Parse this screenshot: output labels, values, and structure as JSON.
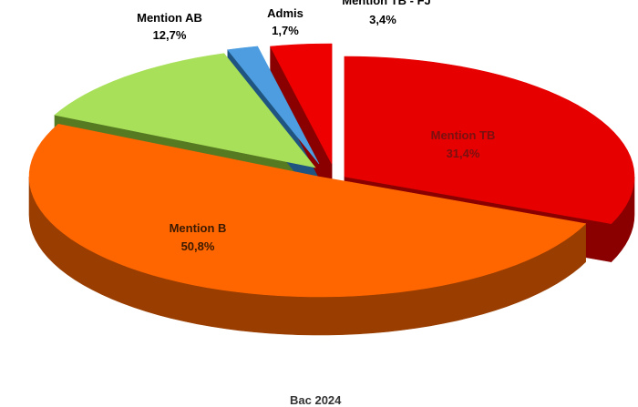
{
  "chart_data": {
    "type": "pie",
    "subtype": "3d-exploded",
    "slices": [
      {
        "label": "Mention TB",
        "value": 31.4,
        "value_text": "31,4%",
        "color": "#e60000",
        "side_color": "#8a0000"
      },
      {
        "label": "Mention B",
        "value": 50.8,
        "value_text": "50,8%",
        "color": "#ff6600",
        "side_color": "#993d00"
      },
      {
        "label": "Mention AB",
        "value": 12.7,
        "value_text": "12,7%",
        "color": "#a8e05a",
        "side_color": "#557a22"
      },
      {
        "label": "Admis",
        "value": 1.7,
        "value_text": "1,7%",
        "color": "#4d9de0",
        "side_color": "#1f5580"
      },
      {
        "label": "Mention TB - FJ",
        "value": 3.4,
        "value_text": "3,4%",
        "color": "#ee0000",
        "side_color": "#8a0000"
      }
    ],
    "bottom_text": "Bac 2024"
  }
}
